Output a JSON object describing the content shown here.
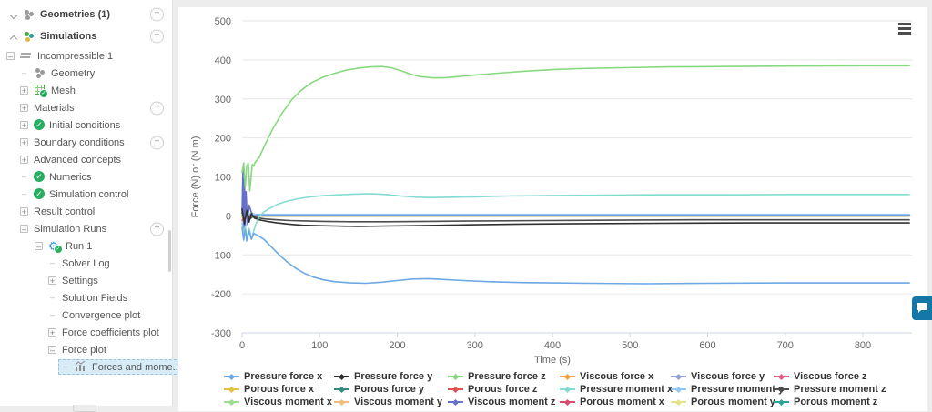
{
  "colors": {
    "selected_bg": "#d8ecf7",
    "check_green": "#27ae60",
    "gear_blue": "#3c9bd6",
    "chat_blue": "#1577a5",
    "grid_line": "#e6e6e6",
    "axis_line": "#ccd6eb",
    "tick_text": "#666666"
  },
  "sidebar": {
    "items": [
      {
        "label": "Geometries (1)",
        "level": 0,
        "expander": "chevron-down",
        "icon": "geometries-icon",
        "add_button": true,
        "bold": true
      },
      {
        "label": "Simulations",
        "level": 0,
        "expander": "chevron-up",
        "icon": "simulations-icon",
        "add_button": true,
        "bold": true
      },
      {
        "label": "Incompressible 1",
        "level": 1,
        "expander": "minus",
        "icon": "streamlines-icon"
      },
      {
        "label": "Geometry",
        "level": 2,
        "expander": "dash",
        "icon": "geometry-icon"
      },
      {
        "label": "Mesh",
        "level": 2,
        "expander": "plus",
        "icon": "mesh-icon",
        "icon_check": true
      },
      {
        "label": "Materials",
        "level": 2,
        "expander": "plus",
        "add_button": true
      },
      {
        "label": "Initial conditions",
        "level": 2,
        "expander": "plus",
        "icon": "check-icon"
      },
      {
        "label": "Boundary conditions",
        "level": 2,
        "expander": "plus",
        "add_button": true
      },
      {
        "label": "Advanced concepts",
        "level": 2,
        "expander": "plus"
      },
      {
        "label": "Numerics",
        "level": 2,
        "expander": "dash",
        "icon": "check-icon"
      },
      {
        "label": "Simulation control",
        "level": 2,
        "expander": "dash",
        "icon": "check-icon"
      },
      {
        "label": "Result control",
        "level": 2,
        "expander": "plus"
      },
      {
        "label": "Simulation Runs",
        "level": 2,
        "expander": "minus",
        "add_button": true
      },
      {
        "label": "Run 1",
        "level": 3,
        "expander": "minus",
        "icon": "gear-icon",
        "icon_check": true
      },
      {
        "label": "Solver Log",
        "level": 4,
        "expander": "dash"
      },
      {
        "label": "Settings",
        "level": 4,
        "expander": "plus"
      },
      {
        "label": "Solution Fields",
        "level": 4,
        "expander": "dash"
      },
      {
        "label": "Convergence plot",
        "level": 4,
        "expander": "dash"
      },
      {
        "label": "Force coefficients plot",
        "level": 4,
        "expander": "plus"
      },
      {
        "label": "Force plot",
        "level": 4,
        "expander": "minus"
      },
      {
        "label": "Forces and mome...",
        "level": 5,
        "expander": "dash",
        "icon": "chart-icon",
        "selected": true
      }
    ]
  },
  "chart": {
    "menu_icon": "hamburger-menu-icon"
  },
  "chart_data": {
    "type": "line",
    "title": "",
    "xlabel": "Time (s)",
    "ylabel": "Force (N) or (N m)",
    "xlim": [
      0,
      860
    ],
    "ylim": [
      -300,
      500
    ],
    "x_ticks": [
      0,
      100,
      200,
      300,
      400,
      500,
      600,
      700,
      800
    ],
    "y_ticks": [
      -300,
      -200,
      -100,
      0,
      100,
      200,
      300,
      400,
      500
    ],
    "grid": "horizontal",
    "legend_position": "bottom",
    "legend_columns": 6,
    "draw_order": [
      6,
      7,
      8,
      15,
      16,
      17,
      12,
      13,
      3,
      5,
      4,
      14,
      10,
      11,
      1,
      9,
      0,
      2
    ],
    "series": [
      {
        "name": "Pressure force x",
        "color": "#6BA8E5",
        "points": [
          [
            0,
            -30
          ],
          [
            2,
            -62
          ],
          [
            4,
            -35
          ],
          [
            6,
            -64
          ],
          [
            9,
            -38
          ],
          [
            12,
            -60
          ],
          [
            15,
            -45
          ],
          [
            20,
            -50
          ],
          [
            28,
            -60
          ],
          [
            38,
            -80
          ],
          [
            48,
            -100
          ],
          [
            58,
            -118
          ],
          [
            68,
            -133
          ],
          [
            80,
            -147
          ],
          [
            92,
            -157
          ],
          [
            105,
            -164
          ],
          [
            120,
            -169
          ],
          [
            140,
            -172
          ],
          [
            160,
            -173
          ],
          [
            180,
            -170
          ],
          [
            200,
            -166
          ],
          [
            220,
            -162
          ],
          [
            240,
            -161
          ],
          [
            260,
            -163
          ],
          [
            285,
            -166
          ],
          [
            320,
            -169
          ],
          [
            360,
            -171
          ],
          [
            400,
            -172
          ],
          [
            450,
            -173
          ],
          [
            520,
            -174
          ],
          [
            600,
            -173
          ],
          [
            700,
            -172
          ],
          [
            800,
            -172
          ],
          [
            860,
            -172
          ]
        ]
      },
      {
        "name": "Pressure force y",
        "color": "#303030",
        "points": [
          [
            0,
            18
          ],
          [
            3,
            -20
          ],
          [
            6,
            14
          ],
          [
            9,
            -16
          ],
          [
            12,
            6
          ],
          [
            16,
            -6
          ],
          [
            22,
            -10
          ],
          [
            32,
            -14
          ],
          [
            45,
            -18
          ],
          [
            60,
            -21
          ],
          [
            78,
            -24
          ],
          [
            95,
            -25
          ],
          [
            120,
            -26
          ],
          [
            150,
            -27
          ],
          [
            185,
            -26
          ],
          [
            230,
            -25
          ],
          [
            290,
            -23
          ],
          [
            360,
            -21
          ],
          [
            440,
            -20
          ],
          [
            540,
            -19
          ],
          [
            660,
            -18
          ],
          [
            800,
            -18
          ],
          [
            860,
            -18
          ]
        ]
      },
      {
        "name": "Pressure force z",
        "color": "#86D97E",
        "points": [
          [
            0,
            112
          ],
          [
            2,
            136
          ],
          [
            4,
            72
          ],
          [
            6,
            128
          ],
          [
            8,
            136
          ],
          [
            10,
            64
          ],
          [
            13,
            132
          ],
          [
            15,
            128
          ],
          [
            17,
            138
          ],
          [
            22,
            150
          ],
          [
            30,
            185
          ],
          [
            40,
            225
          ],
          [
            52,
            265
          ],
          [
            64,
            298
          ],
          [
            76,
            322
          ],
          [
            90,
            342
          ],
          [
            105,
            356
          ],
          [
            120,
            366
          ],
          [
            135,
            374
          ],
          [
            150,
            379
          ],
          [
            165,
            382
          ],
          [
            180,
            383
          ],
          [
            192,
            380
          ],
          [
            205,
            372
          ],
          [
            218,
            363
          ],
          [
            230,
            357
          ],
          [
            245,
            354
          ],
          [
            260,
            354
          ],
          [
            278,
            357
          ],
          [
            300,
            361
          ],
          [
            330,
            366
          ],
          [
            365,
            371
          ],
          [
            400,
            375
          ],
          [
            440,
            378
          ],
          [
            490,
            380
          ],
          [
            550,
            382
          ],
          [
            620,
            383
          ],
          [
            700,
            384
          ],
          [
            800,
            385
          ],
          [
            860,
            385
          ]
        ]
      },
      {
        "name": "Viscous force x",
        "color": "#F6A63C",
        "points": [
          [
            0,
            22
          ],
          [
            3,
            -8
          ],
          [
            6,
            12
          ],
          [
            10,
            4
          ],
          [
            16,
            3
          ],
          [
            30,
            3
          ],
          [
            100,
            3
          ],
          [
            400,
            3
          ],
          [
            860,
            3
          ]
        ]
      },
      {
        "name": "Viscous force y",
        "color": "#93A0DB",
        "points": [
          [
            0,
            10
          ],
          [
            3,
            -12
          ],
          [
            6,
            8
          ],
          [
            10,
            2
          ],
          [
            20,
            2
          ],
          [
            100,
            2
          ],
          [
            860,
            2
          ]
        ]
      },
      {
        "name": "Viscous force z",
        "color": "#E75C86",
        "points": [
          [
            0,
            -12
          ],
          [
            3,
            8
          ],
          [
            6,
            -6
          ],
          [
            10,
            1
          ],
          [
            20,
            1
          ],
          [
            100,
            1
          ],
          [
            860,
            1
          ]
        ]
      },
      {
        "name": "Porous force x",
        "color": "#E3C23E",
        "points": [
          [
            0,
            0
          ],
          [
            860,
            0
          ]
        ]
      },
      {
        "name": "Porous force y",
        "color": "#2E8B80",
        "points": [
          [
            0,
            0
          ],
          [
            860,
            0
          ]
        ]
      },
      {
        "name": "Porous force z",
        "color": "#E05151",
        "points": [
          [
            0,
            0
          ],
          [
            860,
            0
          ]
        ]
      },
      {
        "name": "Pressure moment x",
        "color": "#85DBD2",
        "points": [
          [
            0,
            -18
          ],
          [
            2,
            -48
          ],
          [
            4,
            -26
          ],
          [
            6,
            -58
          ],
          [
            9,
            -32
          ],
          [
            12,
            -60
          ],
          [
            15,
            -38
          ],
          [
            18,
            -20
          ],
          [
            22,
            -2
          ],
          [
            28,
            10
          ],
          [
            36,
            20
          ],
          [
            46,
            30
          ],
          [
            58,
            38
          ],
          [
            72,
            44
          ],
          [
            88,
            49
          ],
          [
            105,
            52
          ],
          [
            125,
            54
          ],
          [
            145,
            56
          ],
          [
            165,
            57
          ],
          [
            185,
            55
          ],
          [
            205,
            51
          ],
          [
            225,
            48
          ],
          [
            245,
            47
          ],
          [
            270,
            48
          ],
          [
            300,
            49
          ],
          [
            340,
            51
          ],
          [
            390,
            52
          ],
          [
            450,
            53
          ],
          [
            530,
            54
          ],
          [
            620,
            54
          ],
          [
            720,
            55
          ],
          [
            800,
            55
          ],
          [
            860,
            55
          ]
        ]
      },
      {
        "name": "Pressure moment y",
        "color": "#90C7F3",
        "points": [
          [
            0,
            14
          ],
          [
            3,
            -18
          ],
          [
            6,
            10
          ],
          [
            10,
            5
          ],
          [
            18,
            4
          ],
          [
            40,
            4
          ],
          [
            100,
            4
          ],
          [
            400,
            4
          ],
          [
            860,
            4
          ]
        ]
      },
      {
        "name": "Pressure moment z",
        "color": "#4D4D4D",
        "points": [
          [
            0,
            8
          ],
          [
            3,
            -12
          ],
          [
            6,
            7
          ],
          [
            10,
            -8
          ],
          [
            14,
            -2
          ],
          [
            20,
            -5
          ],
          [
            30,
            -8
          ],
          [
            45,
            -10
          ],
          [
            62,
            -12
          ],
          [
            82,
            -13
          ],
          [
            105,
            -14
          ],
          [
            140,
            -15
          ],
          [
            185,
            -15
          ],
          [
            240,
            -14
          ],
          [
            310,
            -13
          ],
          [
            390,
            -12
          ],
          [
            480,
            -11
          ],
          [
            580,
            -10
          ],
          [
            700,
            -10
          ],
          [
            800,
            -10
          ],
          [
            860,
            -10
          ]
        ]
      },
      {
        "name": "Viscous moment x",
        "color": "#9ADD8E",
        "points": [
          [
            0,
            6
          ],
          [
            5,
            1
          ],
          [
            15,
            1
          ],
          [
            860,
            1
          ]
        ]
      },
      {
        "name": "Viscous moment y",
        "color": "#F3BC7A",
        "points": [
          [
            0,
            -4
          ],
          [
            5,
            0
          ],
          [
            860,
            0
          ]
        ]
      },
      {
        "name": "Viscous moment z",
        "color": "#6470C9",
        "points": [
          [
            0,
            8
          ],
          [
            1,
            118
          ],
          [
            2,
            -56
          ],
          [
            3,
            96
          ],
          [
            4,
            -42
          ],
          [
            5,
            62
          ],
          [
            7,
            -22
          ],
          [
            9,
            28
          ],
          [
            12,
            8
          ],
          [
            16,
            3
          ],
          [
            25,
            2
          ],
          [
            60,
            2
          ],
          [
            200,
            2
          ],
          [
            860,
            2
          ]
        ]
      },
      {
        "name": "Porous moment x",
        "color": "#DC4C6E",
        "points": [
          [
            0,
            0
          ],
          [
            860,
            0
          ]
        ]
      },
      {
        "name": "Porous moment y",
        "color": "#E5E287",
        "points": [
          [
            0,
            0
          ],
          [
            860,
            0
          ]
        ]
      },
      {
        "name": "Porous moment z",
        "color": "#2CA394",
        "points": [
          [
            0,
            0
          ],
          [
            860,
            0
          ]
        ]
      }
    ]
  },
  "chat_button": {
    "icon": "chat-icon"
  }
}
